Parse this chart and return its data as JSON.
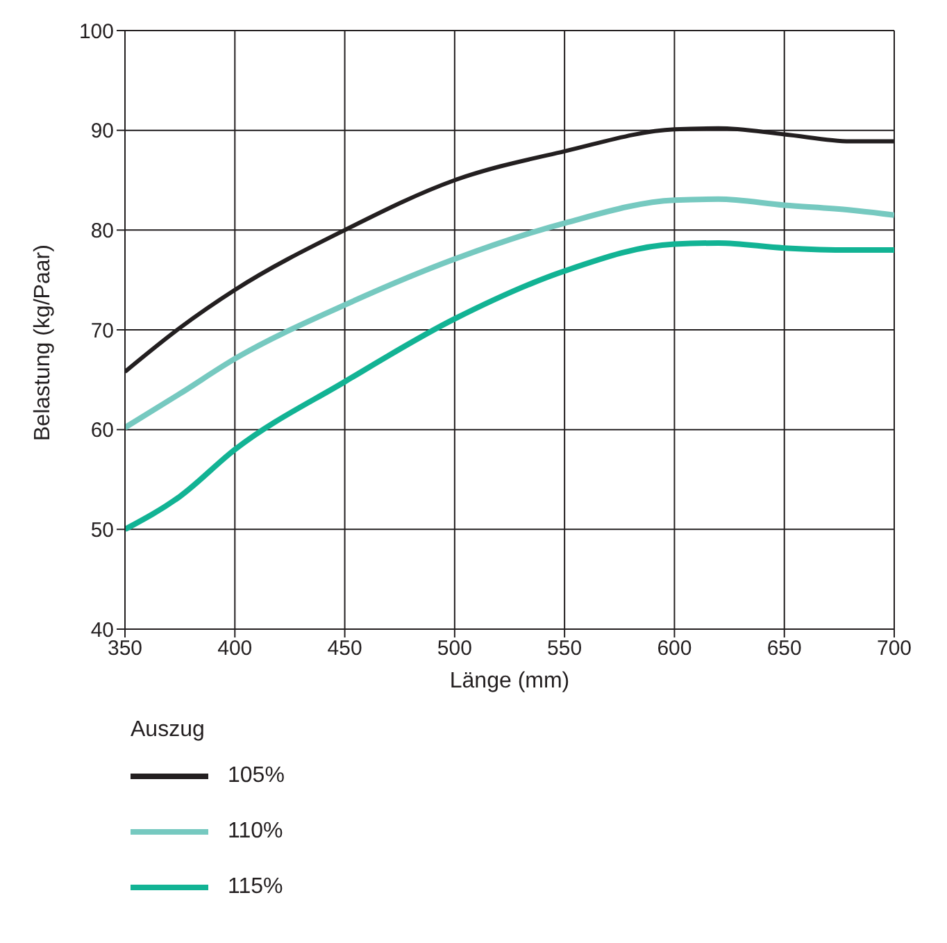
{
  "chart_data": {
    "type": "line",
    "xlabel": "Länge (mm)",
    "ylabel": "Belastung (kg/Paar)",
    "legend_title": "Auszug",
    "x": [
      350,
      375,
      400,
      450,
      500,
      550,
      600,
      620,
      650,
      680,
      700
    ],
    "series": [
      {
        "name": "105%",
        "color": "#231f20",
        "values": [
          65.8,
          70.2,
          74,
          80,
          85,
          87.9,
          90.1,
          90.2,
          89.6,
          88.9,
          88.9
        ]
      },
      {
        "name": "110%",
        "color": "#76c9c0",
        "values": [
          60.2,
          63.6,
          67.1,
          72.5,
          77.1,
          80.7,
          83,
          83.1,
          82.5,
          82,
          81.5
        ]
      },
      {
        "name": "115%",
        "color": "#12b394",
        "values": [
          50,
          53.3,
          58,
          64.8,
          71.1,
          75.9,
          78.6,
          78.7,
          78.2,
          78,
          78
        ]
      }
    ],
    "xlim": [
      350,
      700
    ],
    "xticks": [
      350,
      400,
      450,
      500,
      550,
      600,
      650,
      700
    ],
    "ylim": [
      40,
      100
    ],
    "yticks": [
      40,
      50,
      60,
      70,
      80,
      90,
      100
    ],
    "grid": true,
    "legend": "bottom",
    "marker": "none",
    "line_style": "solid"
  }
}
